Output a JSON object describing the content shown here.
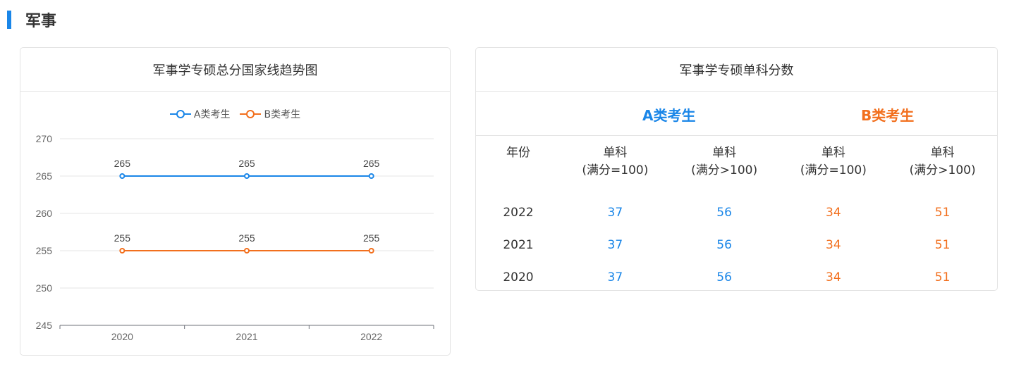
{
  "section": {
    "title": "军事"
  },
  "trend": {
    "title": "军事学专硕总分国家线趋势图",
    "legend": [
      {
        "name": "A类考生",
        "color": "#1a86e8"
      },
      {
        "name": "B类考生",
        "color": "#f26f1d"
      }
    ]
  },
  "chart_data": {
    "type": "line",
    "title": "",
    "xlabel": "",
    "ylabel": "",
    "x": [
      "2020",
      "2021",
      "2022"
    ],
    "ylim": [
      245,
      270
    ],
    "yticks": [
      245,
      250,
      255,
      260,
      265,
      270
    ],
    "grid": true,
    "legend_position": "top-center",
    "series": [
      {
        "name": "A类考生",
        "color": "#1a86e8",
        "values": [
          265,
          265,
          265
        ]
      },
      {
        "name": "B类考生",
        "color": "#f26f1d",
        "values": [
          255,
          255,
          255
        ]
      }
    ]
  },
  "scores": {
    "title": "军事学专硕单科分数",
    "group_a": "A类考生",
    "group_b": "B类考生",
    "headers": {
      "year": "年份",
      "col1_line1": "单科",
      "col1_line2": "(满分=100)",
      "col2_line1": "单科",
      "col2_line2": "(满分>100)",
      "col3_line1": "单科",
      "col3_line2": "(满分=100)",
      "col4_line1": "单科",
      "col4_line2": "(满分>100)"
    },
    "rows": [
      {
        "year": "2022",
        "a100": "37",
        "aover": "56",
        "b100": "34",
        "bover": "51"
      },
      {
        "year": "2021",
        "a100": "37",
        "aover": "56",
        "b100": "34",
        "bover": "51"
      },
      {
        "year": "2020",
        "a100": "37",
        "aover": "56",
        "b100": "34",
        "bover": "51"
      }
    ]
  }
}
